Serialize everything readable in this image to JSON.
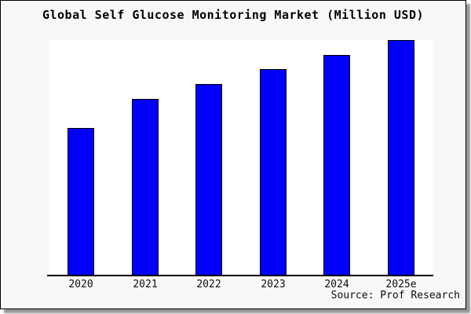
{
  "window": {
    "title": "Global Self Glucose Monitoring Market (Million USD)"
  },
  "footer": {
    "source_note": "Source: Prof Research"
  },
  "colors": {
    "bar_fill": "#0000ff",
    "bar_border": "#000000",
    "frame_background": "#f8f8f8",
    "plot_background": "#ffffff",
    "axis": "#000000",
    "shadow": "#999999",
    "text": "#000000"
  },
  "chart_data": {
    "type": "bar",
    "title": "Global Self Glucose Monitoring Market (Million USD)",
    "categories": [
      "2020",
      "2021",
      "2022",
      "2023",
      "2024",
      "2025e"
    ],
    "values": [
      62.7,
      75.0,
      81.3,
      87.7,
      93.7,
      100.0
    ],
    "units": "relative index (2025e = 100); no y-axis or value labels are shown in the image",
    "xlabel": "",
    "ylabel": "",
    "ylim": [
      0,
      100
    ],
    "grid": false,
    "legend": false,
    "bar_color": "#0000ff",
    "annotations": [
      "Source: Prof Research"
    ]
  }
}
